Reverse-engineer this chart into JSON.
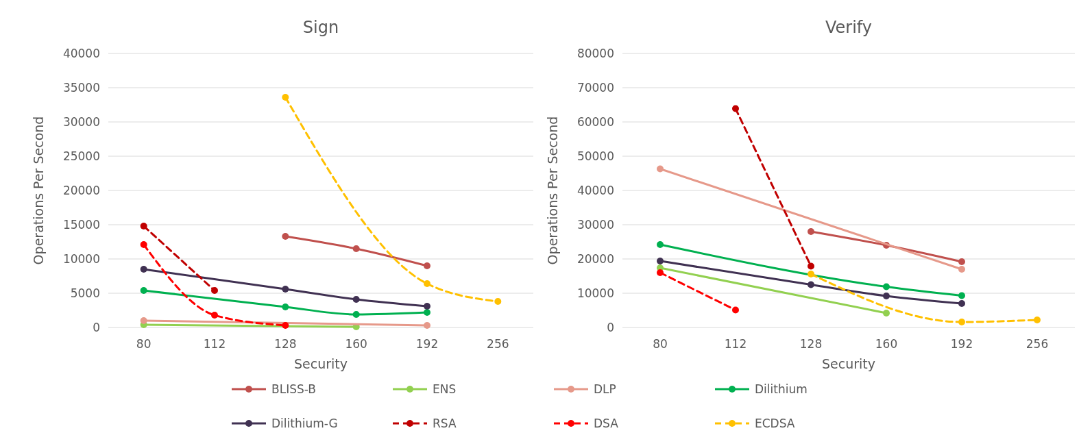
{
  "chart_data": [
    {
      "type": "line",
      "title": "Sign",
      "xlabel": "Security",
      "ylabel": "Operations Per Second",
      "categories": [
        "80",
        "112",
        "128",
        "160",
        "192",
        "256"
      ],
      "ylim": [
        0,
        40000
      ],
      "yticks": [
        0,
        5000,
        10000,
        15000,
        20000,
        25000,
        30000,
        35000,
        40000
      ],
      "grid": "y",
      "legend": "bottom",
      "marker": "circle",
      "series": [
        {
          "name": "BLISS-B",
          "color": "#c0504d",
          "values": [
            null,
            null,
            13300,
            11500,
            9000,
            null
          ]
        },
        {
          "name": "ENS",
          "color": "#92d050",
          "values": [
            400,
            null,
            null,
            100,
            null,
            null
          ]
        },
        {
          "name": "DLP",
          "color": "#e6998a",
          "values": [
            1000,
            null,
            null,
            null,
            300,
            null
          ]
        },
        {
          "name": "Dilithium",
          "color": "#00b050",
          "values": [
            5400,
            null,
            3000,
            1900,
            2200,
            null
          ]
        },
        {
          "name": "Dilithium-G",
          "color": "#403152",
          "values": [
            8500,
            null,
            5600,
            4100,
            3100,
            null
          ]
        },
        {
          "name": "RSA",
          "color": "#c00000",
          "line_style": "dashed",
          "values": [
            14800,
            5400,
            null,
            null,
            null,
            null
          ]
        },
        {
          "name": "DSA",
          "color": "#ff0000",
          "line_style": "dashed",
          "values": [
            12100,
            1800,
            300,
            null,
            null,
            null
          ]
        },
        {
          "name": "ECDSA",
          "color": "#ffc000",
          "line_style": "dashed",
          "values": [
            null,
            null,
            33600,
            null,
            6400,
            3800
          ]
        }
      ]
    },
    {
      "type": "line",
      "title": "Verify",
      "xlabel": "Security",
      "ylabel": "Operations Per Second",
      "categories": [
        "80",
        "112",
        "128",
        "160",
        "192",
        "256"
      ],
      "ylim": [
        0,
        80000
      ],
      "yticks": [
        0,
        10000,
        20000,
        30000,
        40000,
        50000,
        60000,
        70000,
        80000
      ],
      "grid": "y",
      "marker": "circle",
      "series": [
        {
          "color": "#c0504d",
          "values": [
            null,
            null,
            28000,
            24000,
            19200,
            null
          ]
        },
        {
          "color": "#92d050",
          "values": [
            17400,
            null,
            null,
            4200,
            null,
            null
          ]
        },
        {
          "color": "#e6998a",
          "values": [
            46300,
            null,
            null,
            null,
            17000,
            null
          ]
        },
        {
          "color": "#00b050",
          "values": [
            24200,
            null,
            null,
            11900,
            9300,
            null
          ]
        },
        {
          "color": "#403152",
          "values": [
            19400,
            null,
            12500,
            9200,
            7000,
            null
          ]
        },
        {
          "color": "#c00000",
          "line_style": "dashed",
          "values": [
            null,
            63900,
            17900,
            null,
            null,
            null
          ]
        },
        {
          "color": "#ff0000",
          "line_style": "dashed",
          "values": [
            16000,
            5100,
            null,
            null,
            null,
            null
          ]
        },
        {
          "color": "#ffc000",
          "line_style": "dashed",
          "values": [
            null,
            null,
            15600,
            null,
            1600,
            2200
          ]
        }
      ]
    }
  ]
}
